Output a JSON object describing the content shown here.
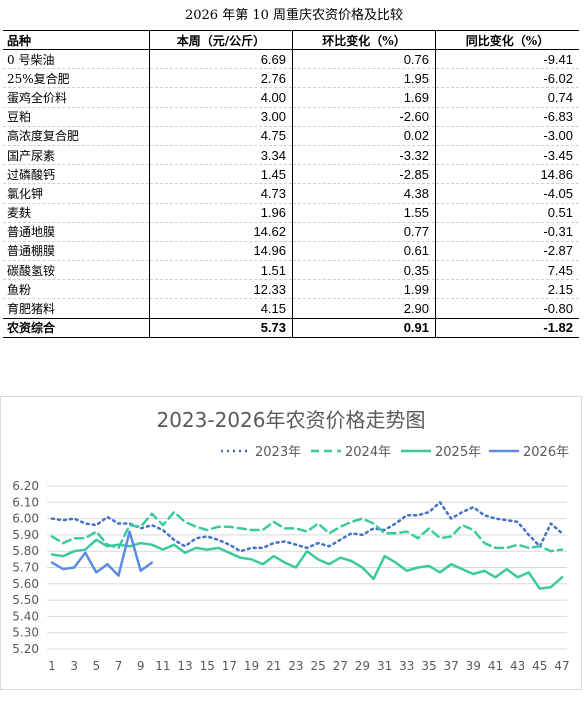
{
  "table": {
    "title": "2026 年第 10 周重庆农资价格及比较",
    "headers": [
      "品种",
      "本周（元/公斤）",
      "环比变化（%）",
      "同比变化（%）"
    ],
    "rows": [
      {
        "name": "0 号柴油",
        "price": "6.69",
        "mom": "0.76",
        "yoy": "-9.41"
      },
      {
        "name": "25%复合肥",
        "price": "2.76",
        "mom": "1.95",
        "yoy": "-6.02"
      },
      {
        "name": "蛋鸡全价料",
        "price": "4.00",
        "mom": "1.69",
        "yoy": "0.74"
      },
      {
        "name": "豆粕",
        "price": "3.00",
        "mom": "-2.60",
        "yoy": "-6.83"
      },
      {
        "name": "高浓度复合肥",
        "price": "4.75",
        "mom": "0.02",
        "yoy": "-3.00"
      },
      {
        "name": "国产尿素",
        "price": "3.34",
        "mom": "-3.32",
        "yoy": "-3.45"
      },
      {
        "name": "过磷酸钙",
        "price": "1.45",
        "mom": "-2.85",
        "yoy": "14.86"
      },
      {
        "name": "氯化钾",
        "price": "4.73",
        "mom": "4.38",
        "yoy": "-4.05"
      },
      {
        "name": "麦麸",
        "price": "1.96",
        "mom": "1.55",
        "yoy": "0.51"
      },
      {
        "name": "普通地膜",
        "price": "14.62",
        "mom": "0.77",
        "yoy": "-0.31"
      },
      {
        "name": "普通棚膜",
        "price": "14.96",
        "mom": "0.61",
        "yoy": "-2.87"
      },
      {
        "name": "碳酸氢铵",
        "price": "1.51",
        "mom": "0.35",
        "yoy": "7.45"
      },
      {
        "name": "鱼粉",
        "price": "12.33",
        "mom": "1.99",
        "yoy": "2.15"
      },
      {
        "name": "育肥猪料",
        "price": "4.15",
        "mom": "2.90",
        "yoy": "-0.80"
      }
    ],
    "total": {
      "name": "农资综合",
      "price": "5.73",
      "mom": "0.91",
      "yoy": "-1.82"
    }
  },
  "chart_data": {
    "type": "line",
    "title": "2023-2026年农资价格走势图",
    "xlabel": "",
    "ylabel": "",
    "ylim": [
      5.2,
      6.2
    ],
    "yticks": [
      "6.20",
      "6.10",
      "6.00",
      "5.90",
      "5.80",
      "5.70",
      "5.60",
      "5.50",
      "5.40",
      "5.30",
      "5.20"
    ],
    "xticks": [
      1,
      3,
      5,
      7,
      9,
      11,
      13,
      15,
      17,
      19,
      21,
      23,
      25,
      27,
      29,
      31,
      33,
      35,
      37,
      39,
      41,
      43,
      45,
      47
    ],
    "grid": true,
    "legend_position": "top-right",
    "series": [
      {
        "name": "2023年",
        "color": "#4472C4",
        "dash": "dot",
        "x": [
          1,
          2,
          3,
          4,
          5,
          6,
          7,
          8,
          9,
          10,
          11,
          12,
          13,
          14,
          15,
          16,
          17,
          18,
          19,
          20,
          21,
          22,
          23,
          24,
          25,
          26,
          27,
          28,
          29,
          30,
          31,
          32,
          33,
          34,
          35,
          36,
          37,
          38,
          39,
          40,
          41,
          42,
          43,
          44,
          45,
          46,
          47
        ],
        "values": [
          6.0,
          5.99,
          6.0,
          5.97,
          5.96,
          6.01,
          5.97,
          5.97,
          5.94,
          5.96,
          5.93,
          5.87,
          5.83,
          5.88,
          5.89,
          5.87,
          5.84,
          5.8,
          5.82,
          5.82,
          5.85,
          5.86,
          5.84,
          5.82,
          5.85,
          5.83,
          5.87,
          5.91,
          5.9,
          5.94,
          5.93,
          5.97,
          6.02,
          6.02,
          6.04,
          6.1,
          6.0,
          6.04,
          6.07,
          6.02,
          6.0,
          5.99,
          5.98,
          5.9,
          5.83,
          5.97,
          5.91
        ]
      },
      {
        "name": "2024年",
        "color": "#3CC9A0",
        "dash": "dash",
        "x": [
          1,
          2,
          3,
          4,
          5,
          6,
          7,
          8,
          9,
          10,
          11,
          12,
          13,
          14,
          15,
          16,
          17,
          18,
          19,
          20,
          21,
          22,
          23,
          24,
          25,
          26,
          27,
          28,
          29,
          30,
          31,
          32,
          33,
          34,
          35,
          36,
          37,
          38,
          39,
          40,
          41,
          42,
          43,
          44,
          45,
          46,
          47
        ],
        "values": [
          5.89,
          5.85,
          5.88,
          5.88,
          5.92,
          5.84,
          5.82,
          5.96,
          5.95,
          6.03,
          5.96,
          6.04,
          5.98,
          5.95,
          5.93,
          5.95,
          5.95,
          5.94,
          5.93,
          5.93,
          5.98,
          5.94,
          5.94,
          5.92,
          5.97,
          5.91,
          5.95,
          5.98,
          6.0,
          5.97,
          5.91,
          5.91,
          5.92,
          5.88,
          5.94,
          5.88,
          5.89,
          5.96,
          5.93,
          5.85,
          5.82,
          5.82,
          5.84,
          5.82,
          5.83,
          5.8,
          5.81
        ]
      },
      {
        "name": "2025年",
        "color": "#3CC9A0",
        "dash": "solid",
        "x": [
          1,
          2,
          3,
          4,
          5,
          6,
          7,
          8,
          9,
          10,
          11,
          12,
          13,
          14,
          15,
          16,
          17,
          18,
          19,
          20,
          21,
          22,
          23,
          24,
          25,
          26,
          27,
          28,
          29,
          30,
          31,
          32,
          33,
          34,
          35,
          36,
          37,
          38,
          39,
          40,
          41,
          42,
          43,
          44,
          45,
          46,
          47
        ],
        "values": [
          5.78,
          5.77,
          5.8,
          5.81,
          5.87,
          5.83,
          5.84,
          5.83,
          5.85,
          5.84,
          5.81,
          5.84,
          5.79,
          5.82,
          5.81,
          5.82,
          5.79,
          5.76,
          5.75,
          5.72,
          5.77,
          5.73,
          5.7,
          5.8,
          5.75,
          5.72,
          5.76,
          5.74,
          5.7,
          5.63,
          5.77,
          5.73,
          5.68,
          5.7,
          5.71,
          5.67,
          5.72,
          5.69,
          5.66,
          5.68,
          5.64,
          5.69,
          5.64,
          5.67,
          5.57,
          5.58,
          5.64
        ]
      },
      {
        "name": "2026年",
        "color": "#5B8BE6",
        "dash": "solid",
        "x": [
          1,
          2,
          3,
          4,
          5,
          6,
          7,
          8,
          9,
          10
        ],
        "values": [
          5.73,
          5.69,
          5.7,
          5.79,
          5.67,
          5.72,
          5.65,
          5.92,
          5.68,
          5.73
        ]
      }
    ]
  }
}
